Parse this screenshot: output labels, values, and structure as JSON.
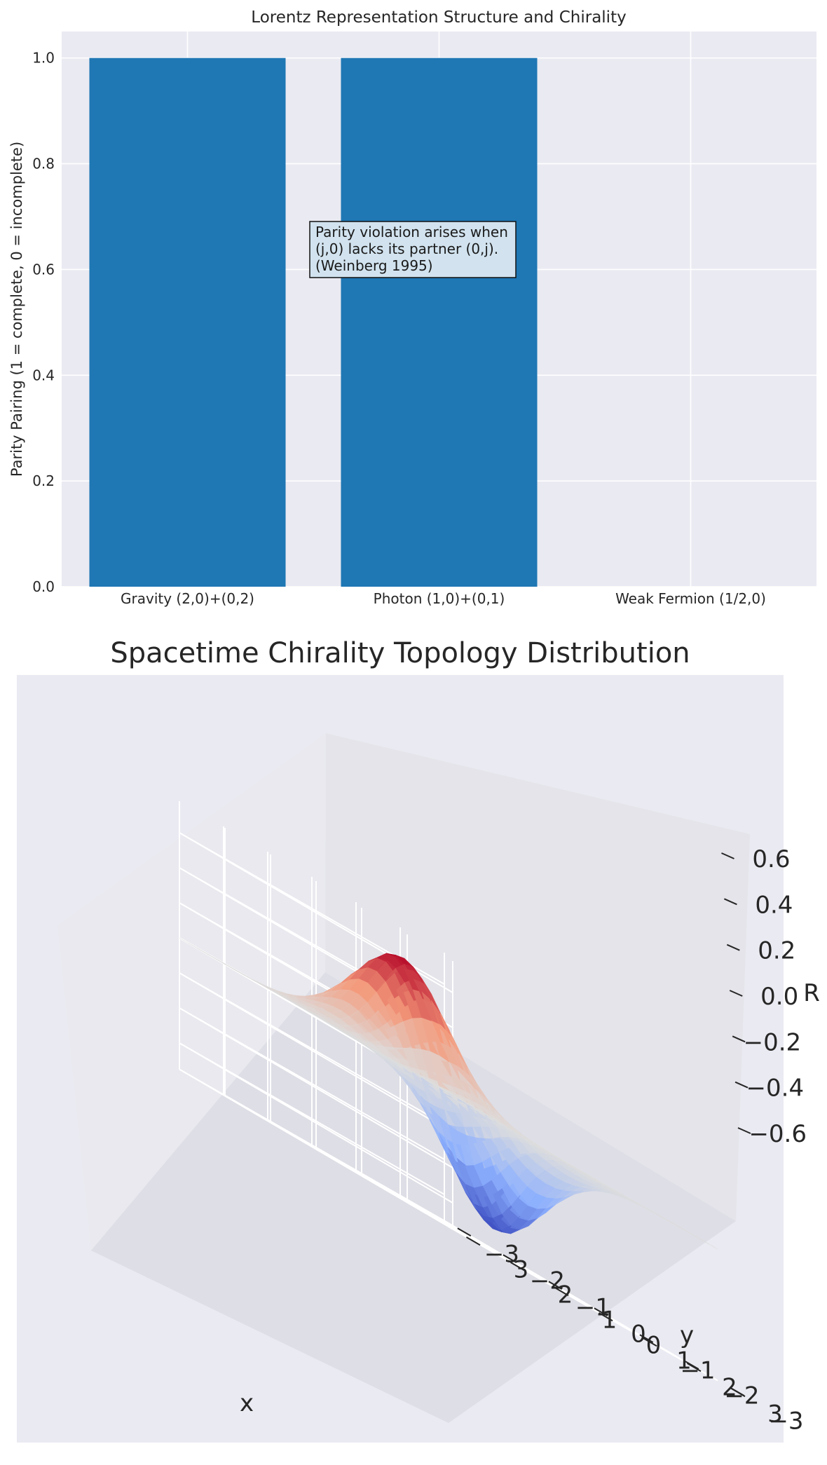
{
  "chart_data": [
    {
      "type": "bar",
      "title": "Lorentz Representation Structure and Chirality",
      "ylabel": "Parity Pairing (1 = complete, 0 = incomplete)",
      "xlabel": "",
      "categories": [
        "Gravity (2,0)+(0,2)",
        "Photon (1,0)+(0,1)",
        "Weak Fermion (1/2,0)"
      ],
      "values": [
        1,
        1,
        0
      ],
      "ylim": [
        0,
        1.05
      ],
      "yticks": [
        "0.0",
        "0.2",
        "0.4",
        "0.6",
        "0.8",
        "1.0"
      ],
      "grid": true,
      "bar_color": "#1f77b4",
      "annotation": {
        "lines": [
          "Parity violation arises when",
          "(j,0) lacks its partner (0,j).",
          "(Weinberg 1995)"
        ],
        "box_color": "#d2e3ef"
      }
    },
    {
      "type": "surface3d",
      "title": "Spacetime Chirality Topology Distribution",
      "xlabel": "x",
      "ylabel": "y",
      "zlabel": "R",
      "xticks": [
        "−3",
        "−2",
        "−1",
        "0",
        "1",
        "2",
        "3"
      ],
      "yticks": [
        "−3",
        "−2",
        "−1",
        "0",
        "1",
        "2",
        "3"
      ],
      "zticks": [
        "−0.6",
        "−0.4",
        "−0.2",
        "0.0",
        "0.2",
        "0.4",
        "0.6"
      ],
      "xlim": [
        -3,
        3
      ],
      "ylim": [
        -3,
        3
      ],
      "zlim": [
        -0.6,
        0.6
      ],
      "colormap": "coolwarm",
      "peak": {
        "x": 0,
        "y": 1,
        "z": 0.65
      },
      "trough": {
        "x": 0,
        "y": -1,
        "z": -0.65
      }
    }
  ]
}
